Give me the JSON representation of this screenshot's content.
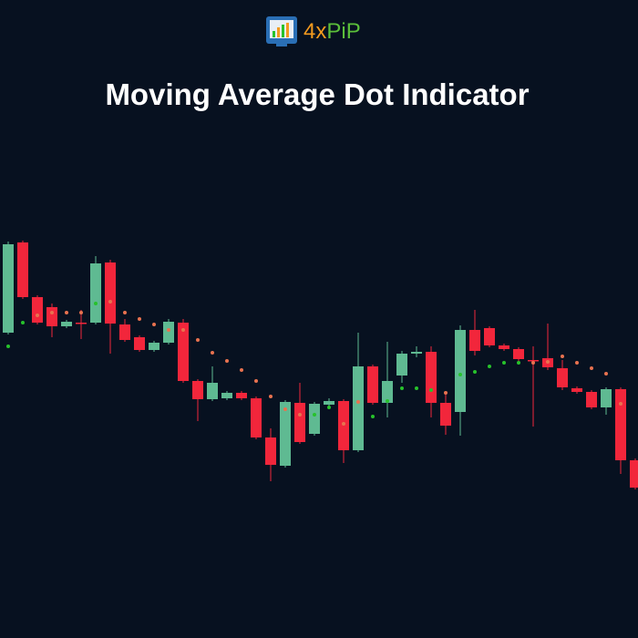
{
  "logo": [
    "4x",
    "PiP"
  ],
  "chart_data": {
    "type": "candlestick",
    "title": "Moving Average Dot Indicator",
    "open": [
      335,
      434,
      374,
      363,
      342,
      346,
      346,
      412,
      344,
      330,
      316,
      324,
      346,
      282,
      262,
      263,
      269,
      263,
      220,
      189,
      258,
      224,
      256,
      260,
      206,
      298,
      258,
      288,
      312,
      314,
      258,
      248,
      338,
      340,
      321,
      317,
      305,
      307,
      296,
      274,
      270,
      253,
      273,
      195
    ],
    "high": [
      435,
      436,
      376,
      367,
      349,
      360,
      419,
      415,
      350,
      332,
      326,
      350,
      350,
      284,
      298,
      271,
      271,
      265,
      230,
      261,
      280,
      259,
      263,
      262,
      335,
      300,
      325,
      315,
      320,
      320,
      270,
      343,
      360,
      342,
      323,
      319,
      320,
      345,
      305,
      276,
      272,
      275,
      275,
      197
    ],
    "low": [
      333,
      372,
      344,
      330,
      340,
      328,
      344,
      312,
      325,
      314,
      314,
      322,
      280,
      238,
      260,
      261,
      261,
      218,
      172,
      187,
      213,
      222,
      254,
      192,
      204,
      256,
      242,
      280,
      308,
      242,
      223,
      222,
      310,
      319,
      315,
      304,
      232,
      294,
      272,
      268,
      251,
      245,
      180,
      163
    ],
    "close": [
      432,
      374,
      346,
      342,
      347,
      345,
      411,
      345,
      327,
      316,
      324,
      347,
      282,
      262,
      280,
      269,
      263,
      220,
      190,
      259,
      215,
      257,
      260,
      206,
      298,
      258,
      282,
      312,
      314,
      258,
      233,
      338,
      315,
      321,
      317,
      306,
      304,
      297,
      275,
      270,
      253,
      273,
      195,
      165
    ],
    "dots": [
      320,
      346,
      354,
      357,
      357,
      357,
      367,
      369,
      357,
      350,
      344,
      338,
      338,
      327,
      313,
      304,
      294,
      282,
      265,
      251,
      245,
      245,
      253,
      235,
      259,
      243,
      260,
      274,
      274,
      272,
      269,
      289,
      292,
      298,
      302,
      302,
      302,
      303,
      309,
      302,
      296,
      290,
      257,
      null
    ],
    "dot_colors": [
      "#27c22b",
      "#27c22b",
      "#e8724f",
      "#e8724f",
      "#e8724f",
      "#e8724f",
      "#27c22b",
      "#e8724f",
      "#e8724f",
      "#e8724f",
      "#e8724f",
      "#e8724f",
      "#e8724f",
      "#e8724f",
      "#e8724f",
      "#e8724f",
      "#e8724f",
      "#e8724f",
      "#e8724f",
      "#e8724f",
      "#e8724f",
      "#27c22b",
      "#27c22b",
      "#e8724f",
      "#e8724f",
      "#27c22b",
      "#27c22b",
      "#27c22b",
      "#27c22b",
      "#27c22b",
      "#e8724f",
      "#27c22b",
      "#27c22b",
      "#27c22b",
      "#27c22b",
      "#27c22b",
      "#e8724f",
      "#e8724f",
      "#e8724f",
      "#e8724f",
      "#e8724f",
      "#e8724f",
      "#e8724f",
      "#e8724f"
    ],
    "up_color": "#5fba92",
    "down_color": "#f2263b",
    "ylim": [
      0,
      700
    ]
  }
}
